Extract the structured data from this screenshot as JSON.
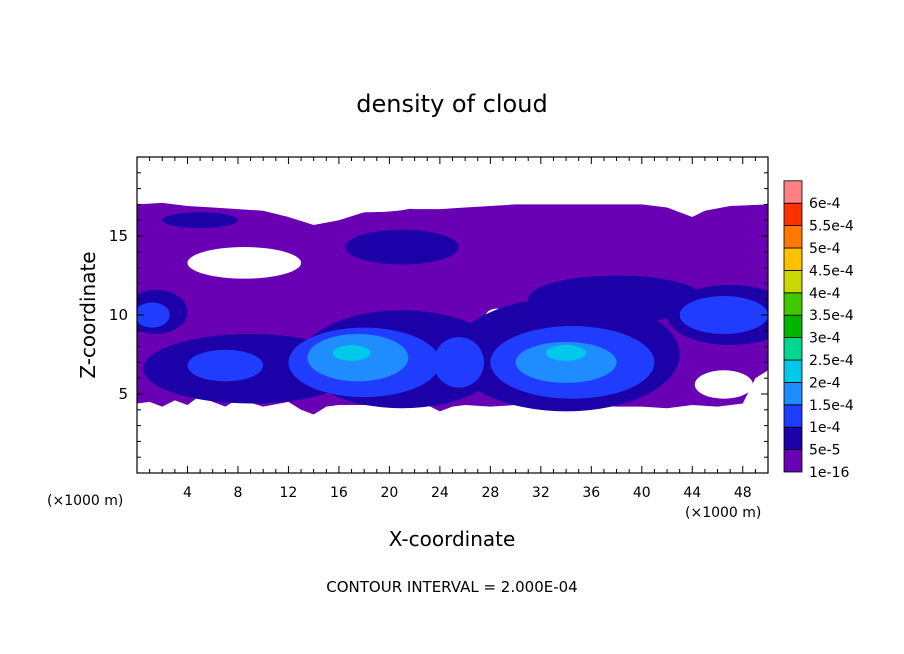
{
  "chart_data": {
    "type": "heatmap",
    "title": "density of cloud",
    "xlabel": "X-coordinate",
    "ylabel": "Z-coordinate",
    "x_unit": "(×1000 m)",
    "y_unit": "(×1000 m)",
    "xlim": [
      0,
      50
    ],
    "ylim": [
      0,
      20
    ],
    "x_ticks": [
      "4",
      "8",
      "12",
      "16",
      "20",
      "24",
      "28",
      "32",
      "36",
      "40",
      "44",
      "48"
    ],
    "y_ticks": [
      "5",
      "10",
      "15"
    ],
    "footer": "CONTOUR INTERVAL = 2.000E-04",
    "colorbar": {
      "labels": [
        "1e-16",
        "5e-5",
        "1e-4",
        "1.5e-4",
        "2e-4",
        "2.5e-4",
        "3e-4",
        "3.5e-4",
        "4e-4",
        "4.5e-4",
        "5e-4",
        "5.5e-4",
        "6e-4"
      ],
      "colors": [
        "#6a00b4",
        "#1c00a8",
        "#1f3cff",
        "#1f8cff",
        "#00c8e8",
        "#00d890",
        "#00b400",
        "#40c800",
        "#c8d800",
        "#ffc000",
        "#ff7800",
        "#ff3000",
        "#ff8080"
      ]
    },
    "cloud_regions": [
      {
        "level": 0,
        "shape": "envelope",
        "top": [
          [
            0,
            17.0
          ],
          [
            2,
            17.1
          ],
          [
            4,
            16.9
          ],
          [
            6,
            16.8
          ],
          [
            8,
            16.7
          ],
          [
            10,
            16.6
          ],
          [
            12,
            16.2
          ],
          [
            14,
            15.7
          ],
          [
            16,
            16.0
          ],
          [
            18,
            16.5
          ],
          [
            20,
            16.8
          ],
          [
            22,
            16.7
          ],
          [
            24,
            16.7
          ],
          [
            26,
            16.8
          ],
          [
            28,
            16.9
          ],
          [
            30,
            17.0
          ],
          [
            32,
            17.0
          ],
          [
            34,
            17.0
          ],
          [
            36,
            17.0
          ],
          [
            38,
            17.0
          ],
          [
            40,
            17.0
          ],
          [
            42,
            16.8
          ],
          [
            44,
            16.2
          ],
          [
            45,
            16.6
          ],
          [
            47,
            16.9
          ],
          [
            50,
            17.0
          ]
        ],
        "bottom": [
          [
            0,
            4.4
          ],
          [
            1,
            4.5
          ],
          [
            2,
            4.2
          ],
          [
            3,
            4.6
          ],
          [
            4,
            4.3
          ],
          [
            5,
            4.9
          ],
          [
            6,
            4.5
          ],
          [
            7,
            4.2
          ],
          [
            8,
            4.7
          ],
          [
            10,
            4.2
          ],
          [
            12,
            4.5
          ],
          [
            13,
            4.0
          ],
          [
            14,
            3.7
          ],
          [
            15,
            4.2
          ],
          [
            16,
            4.3
          ],
          [
            18,
            4.3
          ],
          [
            20,
            4.2
          ],
          [
            21,
            4.3
          ],
          [
            22,
            4.2
          ],
          [
            23,
            4.3
          ],
          [
            24,
            3.9
          ],
          [
            25,
            4.2
          ],
          [
            26,
            4.3
          ],
          [
            28,
            4.2
          ],
          [
            30,
            4.3
          ],
          [
            32,
            4.2
          ],
          [
            34,
            4.2
          ],
          [
            36,
            4.3
          ],
          [
            38,
            4.2
          ],
          [
            40,
            4.2
          ],
          [
            42,
            4.1
          ],
          [
            44,
            4.3
          ],
          [
            46,
            4.2
          ],
          [
            48,
            4.4
          ],
          [
            49,
            6.0
          ],
          [
            50,
            6.5
          ]
        ]
      },
      {
        "level": 0,
        "shape": "hole",
        "cx": 8.5,
        "cy": 13.3,
        "rx": 4.5,
        "ry": 1.0
      },
      {
        "level": 0,
        "shape": "hole",
        "cx": 18,
        "cy": 16.9,
        "rx": 4.0,
        "ry": 0.4
      },
      {
        "level": 0,
        "shape": "hole",
        "cx": 46.5,
        "cy": 5.6,
        "rx": 2.3,
        "ry": 0.9
      },
      {
        "level": 0,
        "shape": "hole",
        "cx": 22.4,
        "cy": 5.0,
        "rx": 0.8,
        "ry": 0.4
      },
      {
        "level": 0,
        "shape": "hole",
        "cx": 28.5,
        "cy": 9.9,
        "rx": 0.9,
        "ry": 0.5
      },
      {
        "level": 1,
        "shape": "blob",
        "cx": 9,
        "cy": 6.6,
        "rx": 8.5,
        "ry": 2.2
      },
      {
        "level": 1,
        "shape": "blob",
        "cx": 21,
        "cy": 7.2,
        "rx": 8.0,
        "ry": 3.1
      },
      {
        "level": 1,
        "shape": "blob",
        "cx": 34,
        "cy": 7.5,
        "rx": 9.0,
        "ry": 3.6
      },
      {
        "level": 1,
        "shape": "blob",
        "cx": 47,
        "cy": 10.0,
        "rx": 5.0,
        "ry": 1.9
      },
      {
        "level": 1,
        "shape": "blob",
        "cx": 1.5,
        "cy": 10.2,
        "rx": 2.5,
        "ry": 1.4
      },
      {
        "level": 1,
        "shape": "blob",
        "cx": 21,
        "cy": 14.3,
        "rx": 4.5,
        "ry": 1.1
      },
      {
        "level": 1,
        "shape": "blob",
        "cx": 5,
        "cy": 16.0,
        "rx": 3.0,
        "ry": 0.5
      },
      {
        "level": 1,
        "shape": "blob",
        "cx": 38,
        "cy": 11.0,
        "rx": 7.0,
        "ry": 1.5
      },
      {
        "level": 2,
        "shape": "blob",
        "cx": 18,
        "cy": 7.0,
        "rx": 6.0,
        "ry": 2.2
      },
      {
        "level": 2,
        "shape": "blob",
        "cx": 34.5,
        "cy": 7.0,
        "rx": 6.5,
        "ry": 2.3
      },
      {
        "level": 2,
        "shape": "blob",
        "cx": 46.5,
        "cy": 10.0,
        "rx": 3.5,
        "ry": 1.2
      },
      {
        "level": 2,
        "shape": "blob",
        "cx": 7,
        "cy": 6.8,
        "rx": 3.0,
        "ry": 1.0
      },
      {
        "level": 2,
        "shape": "blob",
        "cx": 25.5,
        "cy": 7.0,
        "rx": 2.0,
        "ry": 1.6
      },
      {
        "level": 2,
        "shape": "blob",
        "cx": 1.2,
        "cy": 10.0,
        "rx": 1.4,
        "ry": 0.8
      },
      {
        "level": 3,
        "shape": "blob",
        "cx": 17.5,
        "cy": 7.3,
        "rx": 4.0,
        "ry": 1.5
      },
      {
        "level": 3,
        "shape": "blob",
        "cx": 34,
        "cy": 7.0,
        "rx": 4.0,
        "ry": 1.3
      },
      {
        "level": 4,
        "shape": "blob",
        "cx": 17,
        "cy": 7.6,
        "rx": 1.5,
        "ry": 0.5
      },
      {
        "level": 4,
        "shape": "blob",
        "cx": 34,
        "cy": 7.6,
        "rx": 1.6,
        "ry": 0.5
      }
    ]
  }
}
